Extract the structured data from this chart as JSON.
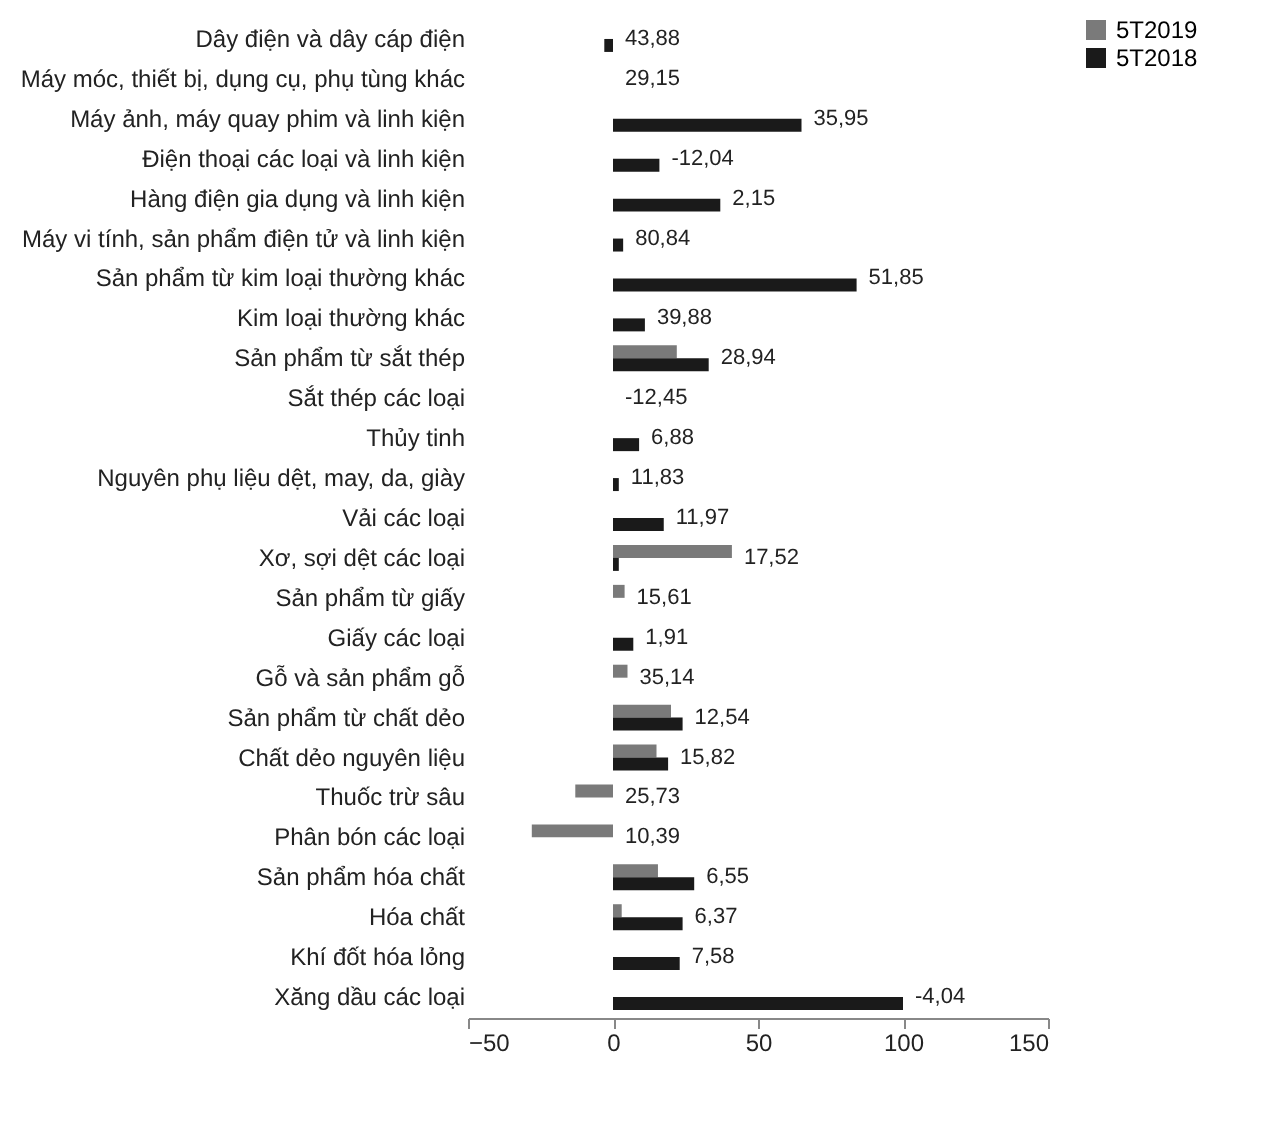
{
  "chart_data": {
    "type": "bar",
    "orientation": "horizontal",
    "categories": [
      "Dây điện và dây cáp điện",
      "Máy móc, thiết bị, dụng cụ, phụ tùng khác",
      "Máy ảnh, máy quay phim và linh kiện",
      "Điện thoại các loại và linh kiện",
      "Hàng điện gia dụng và linh kiện",
      "Máy vi tính, sản phẩm điện tử và linh kiện",
      "Sản phẩm từ kim loại thường khác",
      "Kim loại thường khác",
      "Sản phẩm từ sắt thép",
      "Sắt thép các loại",
      "Thủy tinh",
      "Nguyên phụ liệu dệt, may, da, giày",
      "Vải các loại",
      "Xơ, sợi dệt các loại",
      "Sản phẩm từ giấy",
      "Giấy các loại",
      "Gỗ và sản phẩm gỗ",
      "Sản phẩm từ chất dẻo",
      "Chất dẻo nguyên liệu",
      "Thuốc trừ sâu",
      "Phân bón các loại",
      "Sản phẩm hóa chất",
      "Hóa chất",
      "Khí đốt hóa lỏng",
      "Xăng dầu các loại"
    ],
    "series": [
      {
        "name": "5T2019",
        "color": "#7a7a7a",
        "values": [
          null,
          null,
          null,
          null,
          null,
          null,
          null,
          null,
          22,
          null,
          null,
          null,
          null,
          41,
          4,
          null,
          5,
          20,
          15,
          -13,
          -28,
          15.5,
          3,
          null,
          null
        ]
      },
      {
        "name": "5T2018",
        "color": "#1a1a1a",
        "values": [
          -3,
          null,
          65,
          16,
          37,
          3.5,
          84,
          11,
          33,
          null,
          9,
          2,
          17.5,
          2,
          null,
          7,
          null,
          24,
          19,
          null,
          null,
          28,
          24,
          23,
          100
        ]
      }
    ],
    "xlim": [
      -50,
      150
    ],
    "xticks": [
      -50,
      0,
      50,
      100,
      150
    ],
    "legend": "right",
    "annotations": [
      "43,88",
      "29,15",
      "35,95",
      "-12,04",
      "2,15",
      "80,84",
      "51,85",
      "39,88",
      "28,94",
      "-12,45",
      "6,88",
      "11,83",
      "11,97",
      "17,52",
      "15,61",
      "1,91",
      "35,14",
      "12,54",
      "15,82",
      "25,73",
      "10,39",
      "6,55",
      "6,37",
      "7,58",
      "-4,04"
    ]
  }
}
